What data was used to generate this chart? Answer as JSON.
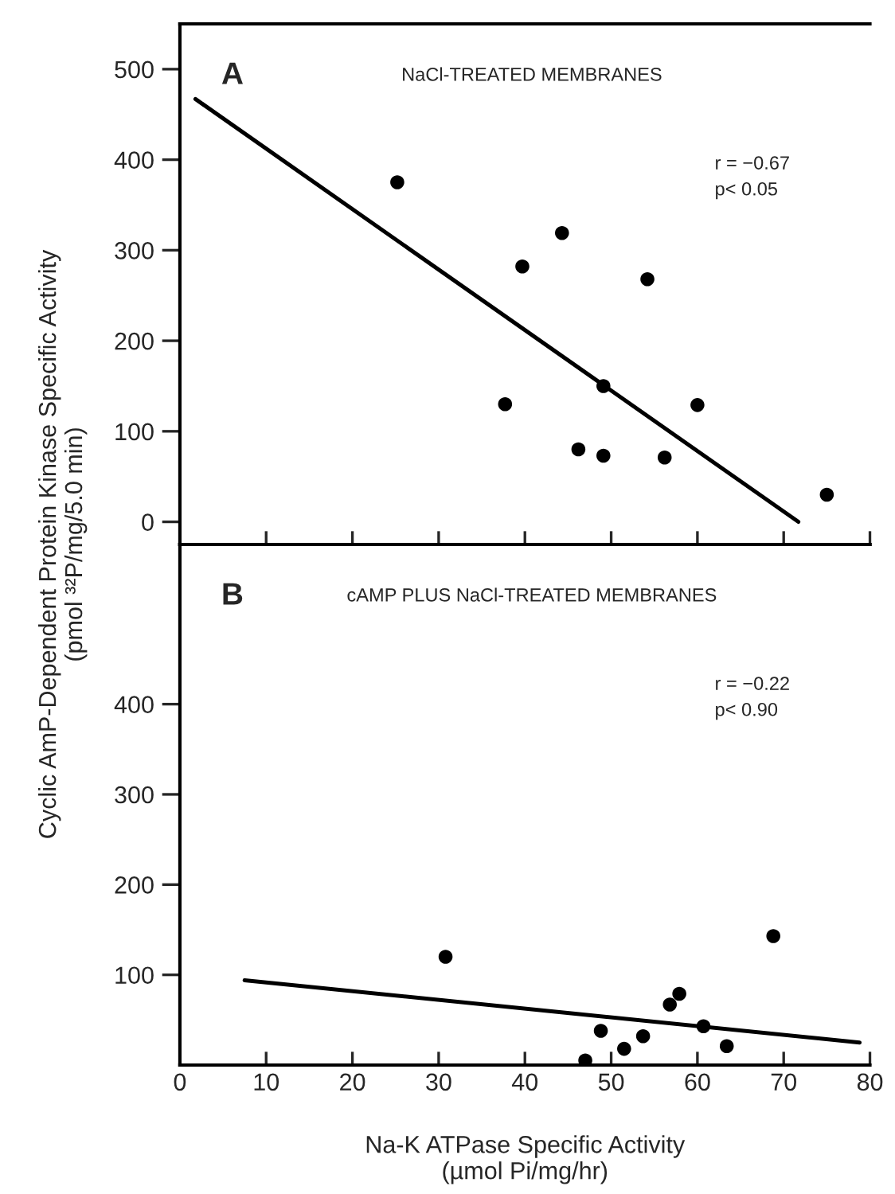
{
  "chart_data": [
    {
      "type": "scatter",
      "title": "NaCl-TREATED MEMBRANES",
      "ylabel": "Cyclic AmP-Dependent Protein Kinase Specific Activity\n(pmol ³²P/mg/5.0 min)",
      "annotations": [
        "A",
        "r = −0.67",
        "p< 0.05"
      ],
      "series": [
        {
          "color": "#000000",
          "marker": "circle",
          "x": [
            25.2,
            37.7,
            39.7,
            44.3,
            46.2,
            49.1,
            49.1,
            54.2,
            56.2,
            60.0,
            75.0
          ],
          "values": [
            375,
            130,
            282,
            319,
            80,
            73,
            150,
            268,
            71,
            129,
            30
          ]
        },
        {
          "type": "line",
          "color": "#000000",
          "x": [
            1.8,
            71.7
          ],
          "values": [
            467,
            0
          ]
        }
      ],
      "xlim": [
        0,
        80
      ],
      "xticks": [
        {
          "value": 10,
          "label": null
        },
        {
          "value": 20,
          "label": null
        },
        {
          "value": 30,
          "label": null
        },
        {
          "value": 40,
          "label": null
        },
        {
          "value": 50,
          "label": null
        },
        {
          "value": 60,
          "label": null
        },
        {
          "value": 70,
          "label": null
        },
        {
          "value": 80,
          "label": null
        }
      ],
      "ylim": [
        -25,
        550
      ],
      "yticks": [
        0,
        100,
        200,
        300,
        400,
        500
      ],
      "tick_labels": "y",
      "grid": false
    },
    {
      "type": "scatter",
      "title": "cAMP PLUS NaCl-TREATED MEMBRANES",
      "xlabel": "Na-K ATPase Specific Activity\n(µmol Pi/mg/hr)",
      "annotations": [
        "B",
        "r = −0.22",
        "p< 0.90"
      ],
      "series": [
        {
          "color": "#000000",
          "marker": "circle",
          "x": [
            30.8,
            47.0,
            48.8,
            51.5,
            53.7,
            56.8,
            57.9,
            60.7,
            63.4,
            68.8
          ],
          "values": [
            120,
            5,
            38,
            18,
            32,
            67,
            79,
            43,
            21,
            143
          ]
        },
        {
          "type": "line",
          "color": "#000000",
          "x": [
            7.5,
            78.8
          ],
          "values": [
            94,
            25
          ]
        }
      ],
      "xlim": [
        0,
        80
      ],
      "xticks": [
        0,
        10,
        20,
        30,
        40,
        50,
        60,
        70,
        80
      ],
      "ylim": [
        0,
        577
      ],
      "yticks": [
        100,
        200,
        300,
        400
      ],
      "grid": false
    }
  ]
}
